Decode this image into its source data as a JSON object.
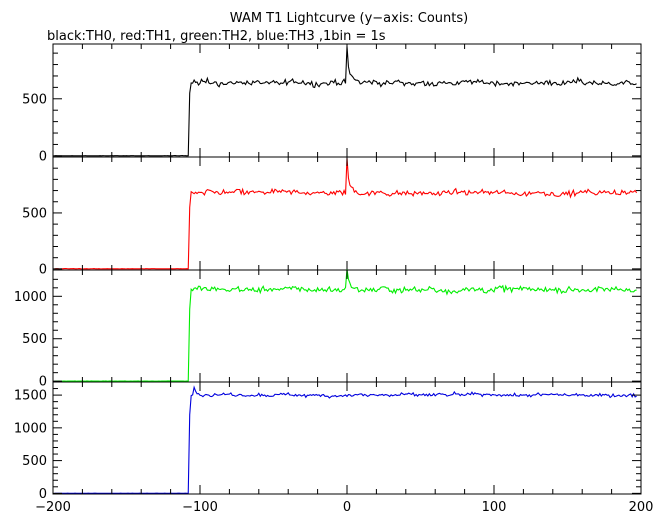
{
  "title": "WAM T1 Lightcurve (y−axis: Counts)",
  "subtitle": "black:TH0, red:TH1, green:TH2, blue:TH3 ,1bin = 1s",
  "chart_data": [
    {
      "type": "line",
      "name": "TH0",
      "color": "#000000",
      "xlim": [
        -200,
        200
      ],
      "ylim": [
        -10,
        980
      ],
      "yticks": [
        0,
        500
      ],
      "ytick_labels": [
        "0",
        "500"
      ],
      "pre_level": 0,
      "post_level": 640,
      "jump_mid": 550,
      "onset": -107,
      "peak_x": 0,
      "peak_value": 960,
      "bump_value": 780,
      "noise": 28,
      "x_start": -199,
      "x_end": 197
    },
    {
      "type": "line",
      "name": "TH1",
      "color": "#ff0000",
      "xlim": [
        -200,
        200
      ],
      "ylim": [
        -10,
        1000
      ],
      "yticks": [
        0,
        500
      ],
      "ytick_labels": [
        "0",
        "500"
      ],
      "pre_level": 0,
      "post_level": 680,
      "jump_mid": 550,
      "onset": -107,
      "peak_x": 0,
      "peak_value": 990,
      "bump_value": 810,
      "noise": 28,
      "x_start": -199,
      "x_end": 197
    },
    {
      "type": "line",
      "name": "TH2",
      "color": "#00ee00",
      "xlim": [
        -200,
        200
      ],
      "ylim": [
        -10,
        1310
      ],
      "yticks": [
        0,
        500,
        1000
      ],
      "ytick_labels": [
        "0",
        "500",
        "1000"
      ],
      "pre_level": 0,
      "post_level": 1080,
      "jump_mid": 850,
      "onset": -107,
      "peak_x": 0,
      "peak_value": 1320,
      "bump_value": 1200,
      "noise": 40,
      "x_start": -199,
      "x_end": 197
    },
    {
      "type": "line",
      "name": "TH3",
      "color": "#0000dd",
      "xlim": [
        -200,
        200
      ],
      "ylim": [
        -10,
        1700
      ],
      "yticks": [
        0,
        500,
        1000,
        1500
      ],
      "ytick_labels": [
        "0",
        "500",
        "1000",
        "1500"
      ],
      "pre_level": 0,
      "post_level": 1500,
      "jump_mid": 1200,
      "onset": -107,
      "peak_x": -104,
      "peak_value": 1620,
      "bump_value": 1560,
      "noise": 30,
      "x_start": -199,
      "x_end": 197
    }
  ],
  "x_axis": {
    "ticks": [
      -200,
      -100,
      0,
      100,
      200
    ],
    "tick_labels": [
      "−200",
      "−100",
      "0",
      "100",
      "200"
    ],
    "minor_step": 20
  }
}
